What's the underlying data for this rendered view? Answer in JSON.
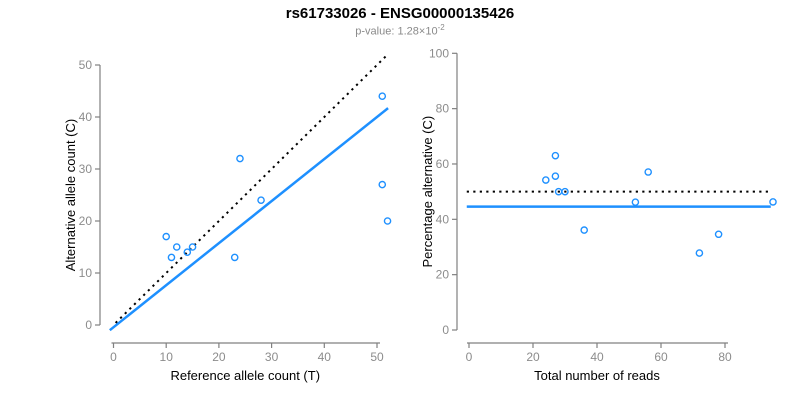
{
  "header": {
    "title": "rs61733026 - ENSG00000135426",
    "subtitle_prefix": "p-value: ",
    "p_value_mantissa": "1.28",
    "times_symbol": "×",
    "p_value_base": "10",
    "p_value_exponent": "-2"
  },
  "colors": {
    "background": "#ffffff",
    "accent_blue": "#1e90ff",
    "dotted_line": "#000000",
    "axis": "#808080",
    "tick_label": "#8c8c8c",
    "axis_title": "#000000",
    "title": "#000000",
    "subtitle": "#8a8a8a"
  },
  "chart_data": [
    {
      "type": "scatter",
      "title": "",
      "xlabel": "Reference allele count (T)",
      "ylabel": "Alternative allele count (C)",
      "xlim": [
        0,
        52
      ],
      "ylim": [
        0,
        50
      ],
      "xticks": [
        0,
        10,
        20,
        30,
        40,
        50
      ],
      "yticks": [
        0,
        10,
        20,
        30,
        40,
        50
      ],
      "grid": false,
      "marker": "open-circle",
      "points": [
        [
          10,
          17
        ],
        [
          11,
          13
        ],
        [
          12,
          15
        ],
        [
          14,
          14
        ],
        [
          15,
          15
        ],
        [
          23,
          13
        ],
        [
          24,
          32
        ],
        [
          28,
          24
        ],
        [
          51,
          27
        ],
        [
          51,
          44
        ],
        [
          52,
          20
        ]
      ],
      "lines": [
        {
          "name": "identity-line",
          "style": "dotted",
          "color": "#000000",
          "from": [
            0.4,
            0.4
          ],
          "to": [
            52,
            52
          ]
        },
        {
          "name": "regression-line",
          "style": "solid",
          "color": "#1e90ff",
          "from": [
            -0.7,
            -1.0
          ],
          "to": [
            52.1,
            41.7
          ]
        }
      ]
    },
    {
      "type": "scatter",
      "title": "",
      "xlabel": "Total number of reads",
      "ylabel": "Percentage alternative (C)",
      "xlim": [
        0,
        95
      ],
      "ylim": [
        0,
        100
      ],
      "xticks": [
        0,
        20,
        40,
        60,
        80
      ],
      "yticks": [
        0,
        20,
        40,
        60,
        80,
        100
      ],
      "grid": false,
      "marker": "open-circle",
      "points": [
        [
          24,
          54.2
        ],
        [
          27,
          55.6
        ],
        [
          27,
          63.0
        ],
        [
          28,
          50
        ],
        [
          30,
          50
        ],
        [
          36,
          36.1
        ],
        [
          52,
          46.2
        ],
        [
          56,
          57.1
        ],
        [
          72,
          27.8
        ],
        [
          78,
          34.6
        ],
        [
          95,
          46.3
        ]
      ],
      "lines": [
        {
          "name": "expected-ratio-line",
          "style": "dotted",
          "color": "#000000",
          "from": [
            -0.7,
            50
          ],
          "to": [
            93.5,
            50
          ]
        },
        {
          "name": "mean-ratio-line",
          "style": "solid",
          "color": "#1e90ff",
          "from": [
            -0.7,
            44.6
          ],
          "to": [
            94.3,
            44.6
          ]
        }
      ]
    }
  ]
}
